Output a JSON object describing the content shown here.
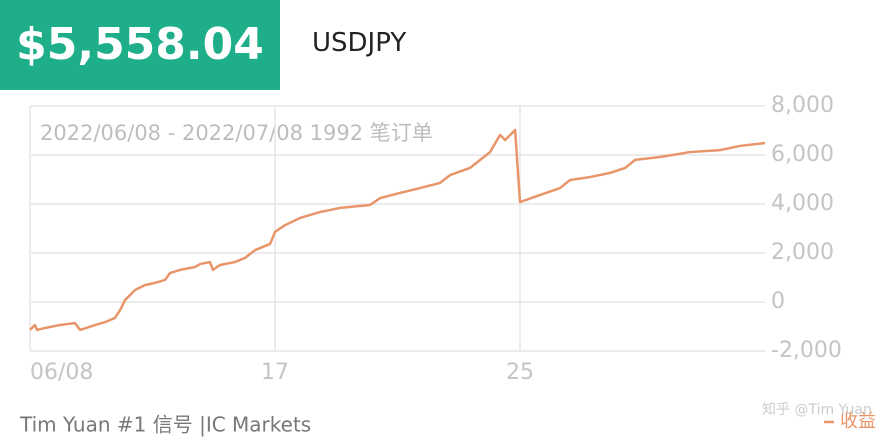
{
  "header": {
    "value": "$5,558.04",
    "symbol": "USDJPY"
  },
  "chart_data": {
    "type": "line",
    "annotation": "2022/06/08 - 2022/07/08 1992 笔订单",
    "x": [
      0,
      0.18,
      0.26,
      0.55,
      1.1,
      1.65,
      1.84,
      2.39,
      2.76,
      3.12,
      3.31,
      3.49,
      3.86,
      4.22,
      4.59,
      4.96,
      5.14,
      5.51,
      6.06,
      6.25,
      6.61,
      6.72,
      6.98,
      7.53,
      7.9,
      8.27,
      8.82,
      9,
      9.37,
      9.92,
      10.65,
      11.39,
      12.49,
      12.86,
      13.59,
      14.33,
      15.06,
      15.43,
      16.16,
      16.9,
      17.27,
      17.45,
      17.82,
      18,
      18.74,
      19.47,
      19.84,
      20.57,
      21.31,
      21.86,
      22.23,
      23.14,
      24.25,
      25.35,
      26.08,
      27
    ],
    "series": [
      {
        "name": "收益",
        "color": "#e8956a",
        "values": [
          -1140,
          -940,
          -1140,
          -1060,
          -940,
          -860,
          -1140,
          -940,
          -820,
          -650,
          -330,
          80,
          490,
          690,
          780,
          900,
          1180,
          1310,
          1430,
          1550,
          1630,
          1310,
          1510,
          1630,
          1800,
          2120,
          2370,
          2860,
          3140,
          3430,
          3670,
          3840,
          3960,
          4240,
          4450,
          4650,
          4860,
          5180,
          5470,
          6120,
          6820,
          6610,
          7020,
          4080,
          4370,
          4650,
          4980,
          5100,
          5270,
          5470,
          5800,
          5920,
          6120,
          6200,
          6370,
          6490
        ]
      }
    ],
    "xlim": [
      0,
      27
    ],
    "xticks": [
      {
        "value": 0,
        "label": "06/08"
      },
      {
        "value": 9,
        "label": "17"
      },
      {
        "value": 18,
        "label": "25"
      }
    ],
    "ylim": [
      -2000,
      8000
    ],
    "yticks": [
      {
        "value": -2000,
        "label": "-2,000"
      },
      0,
      {
        "value": 2000,
        "label": "2,000"
      },
      {
        "value": 4000,
        "label": "4,000"
      },
      {
        "value": 6000,
        "label": "6,000"
      },
      {
        "value": 8000,
        "label": "8,000"
      }
    ],
    "grid": true,
    "legend": "bottom-right"
  },
  "footer": {
    "source": "Tim Yuan #1 信号 |IC Markets",
    "watermark": "知乎 @Tim Yuan"
  }
}
